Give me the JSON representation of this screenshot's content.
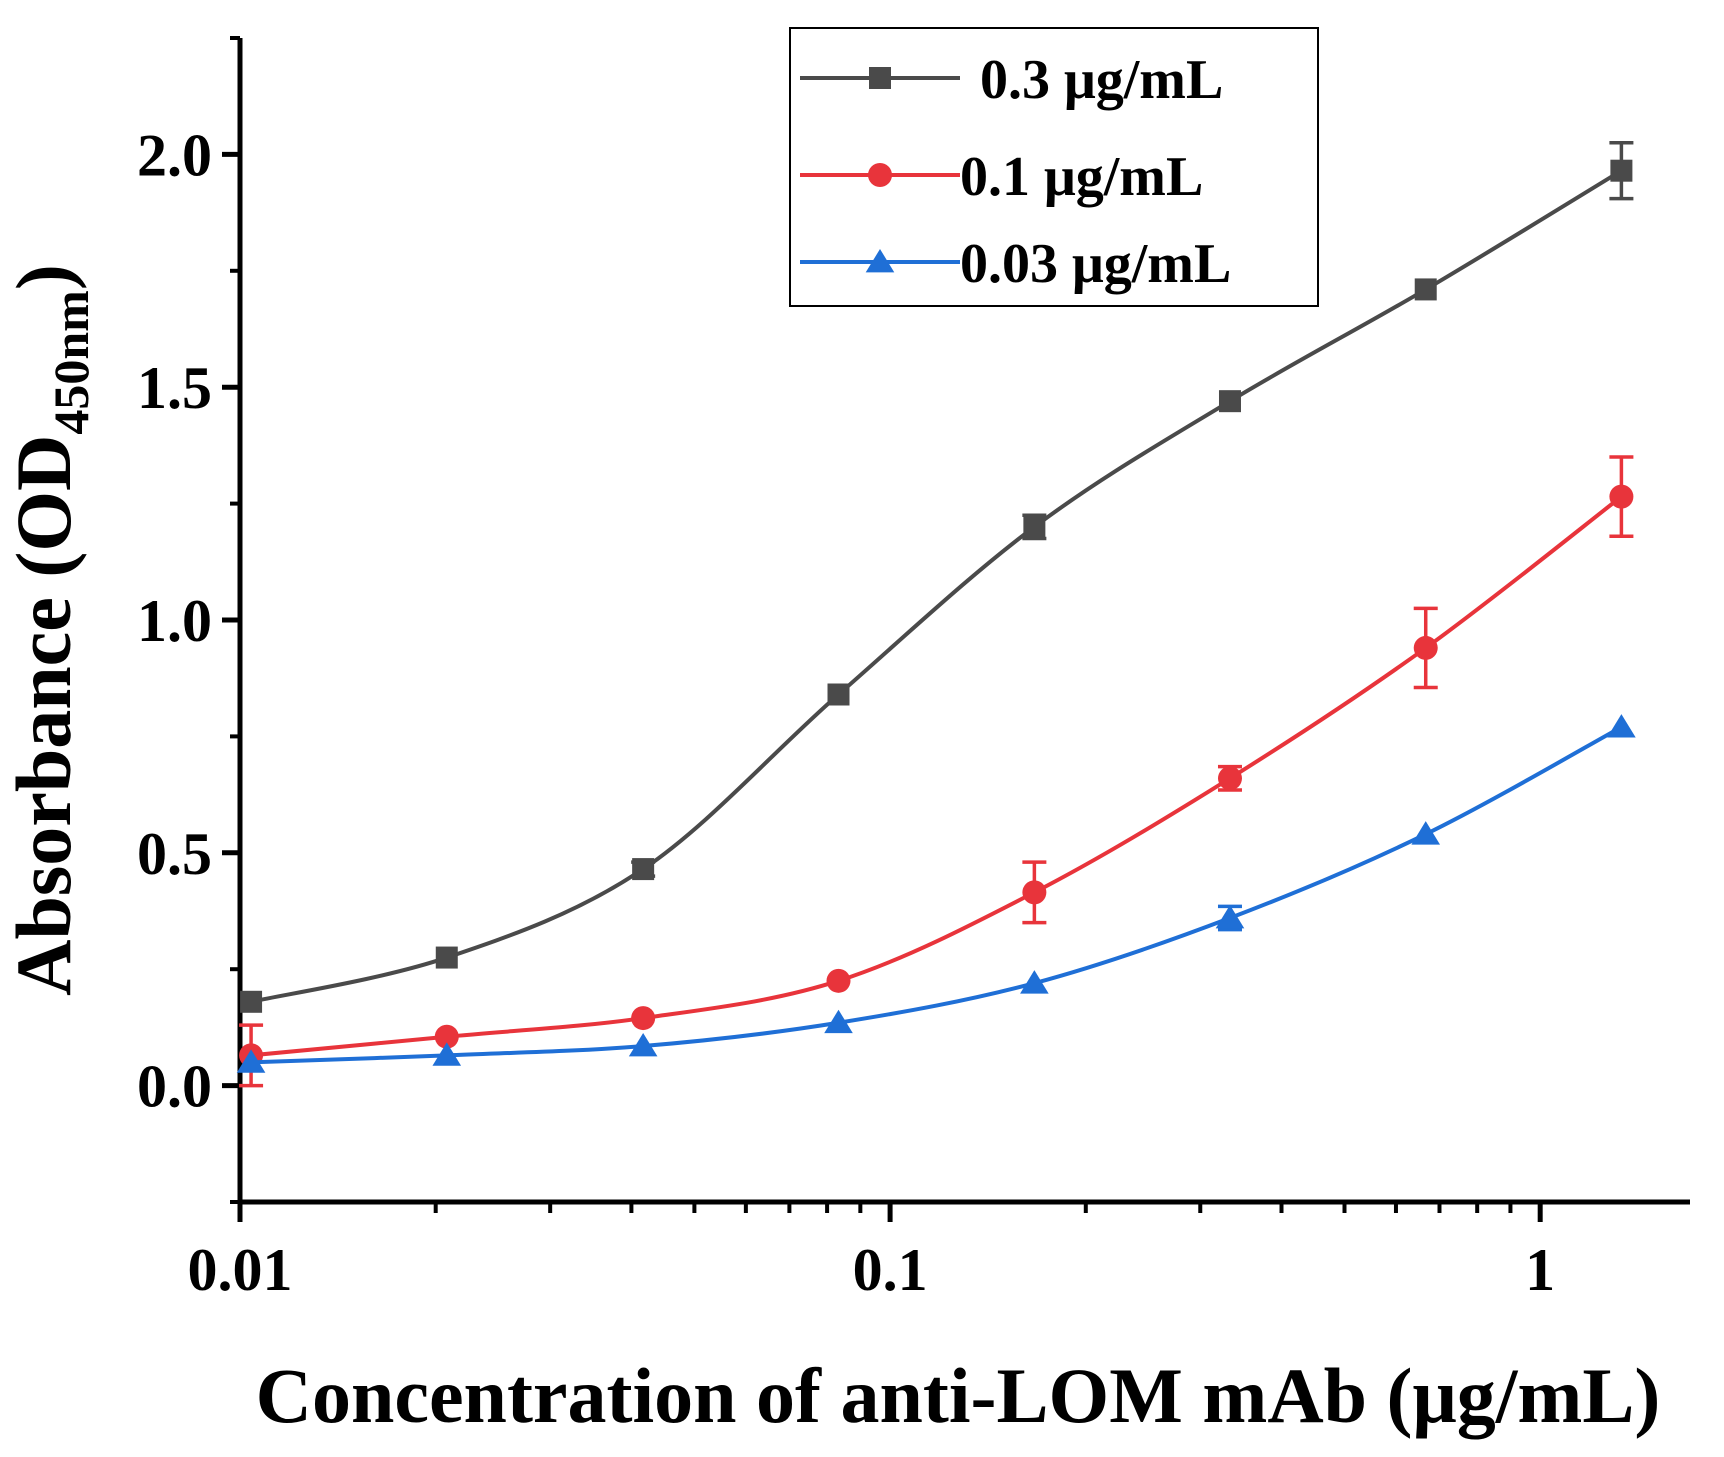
{
  "chart_data": {
    "type": "line",
    "title": "",
    "xlabel": "Concentration of anti-LOM mAb (μg/mL)",
    "ylabel": "Absorbance (OD",
    "ylabel_sub": "450nm",
    "ylabel_close": ")",
    "xscale": "log",
    "xlim": [
      0.01,
      1.7
    ],
    "ylim": [
      -0.25,
      2.25
    ],
    "xticks": [
      {
        "value": 0.01,
        "label": "0.01"
      },
      {
        "value": 0.1,
        "label": "0.1"
      },
      {
        "value": 1,
        "label": "1"
      }
    ],
    "yticks": [
      {
        "value": 0.0,
        "label": "0.0"
      },
      {
        "value": 0.5,
        "label": "0.5"
      },
      {
        "value": 1.0,
        "label": "1.0"
      },
      {
        "value": 1.5,
        "label": "1.5"
      },
      {
        "value": 2.0,
        "label": "2.0"
      }
    ],
    "legend_position": "top-right",
    "x": [
      0.0104,
      0.0208,
      0.0417,
      0.0833,
      0.1667,
      0.3333,
      0.6667,
      1.3333
    ],
    "series": [
      {
        "name": "0.3 μg/mL",
        "color": "#4a4a4a",
        "marker": "square",
        "values": [
          0.18,
          0.275,
          0.465,
          0.84,
          1.2,
          1.47,
          1.71,
          1.965
        ],
        "errors": [
          0.01,
          0.01,
          0.015,
          0.01,
          0.025,
          0.01,
          0.01,
          0.06
        ]
      },
      {
        "name": "0.1 μg/mL",
        "color": "#e8343b",
        "marker": "circle",
        "values": [
          0.065,
          0.105,
          0.145,
          0.225,
          0.415,
          0.66,
          0.94,
          1.265
        ],
        "errors": [
          0.065,
          0.005,
          0.005,
          0.01,
          0.065,
          0.025,
          0.085,
          0.085
        ]
      },
      {
        "name": "0.03 μg/mL",
        "color": "#1f6fd6",
        "marker": "triangle",
        "values": [
          0.05,
          0.065,
          0.085,
          0.135,
          0.22,
          0.36,
          0.54,
          0.77
        ],
        "errors": [
          0.005,
          0.005,
          0.005,
          0.01,
          0.01,
          0.025,
          0.01,
          0.01
        ]
      }
    ]
  }
}
